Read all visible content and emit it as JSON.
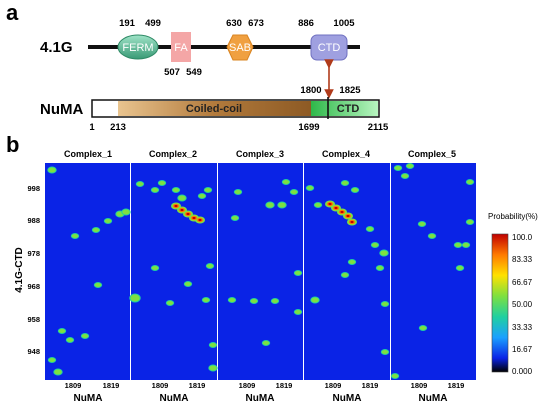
{
  "panel_a": {
    "letter": "a",
    "protein1": {
      "name": "4.1G",
      "domains": [
        {
          "label": "FERM",
          "start": "191",
          "end": "499",
          "color": "#5fbf9a"
        },
        {
          "label": "FA",
          "start": "507",
          "end": "549",
          "color": "#f4a3a3"
        },
        {
          "label": "SAB",
          "start": "630",
          "end": "673",
          "color": "#f0a040"
        },
        {
          "label": "CTD",
          "start": "886",
          "end": "1005",
          "color": "#9999dd"
        }
      ]
    },
    "protein2": {
      "name": "NuMA",
      "start": "1",
      "end": "2115",
      "coil": {
        "label": "Coiled-coil",
        "start": "213",
        "end": "1699",
        "color": "#b07a3a"
      },
      "ctd": {
        "label": "CTD",
        "start": "1699",
        "end": "2115",
        "color": "#3fcf5a"
      },
      "binding": {
        "start": "1800",
        "end": "1825"
      }
    }
  },
  "panel_b": {
    "letter": "b",
    "ylabel": "4.1G-CTD",
    "xlabel": "NuMA",
    "yticks": [
      "998",
      "988",
      "978",
      "968",
      "958",
      "948"
    ],
    "xticks": [
      "1809",
      "1819"
    ],
    "complexes": [
      "Complex_1",
      "Complex_2",
      "Complex_3",
      "Complex_4",
      "Complex_5"
    ],
    "colorbar": {
      "title": "Probability(%)",
      "ticks": [
        "100.0",
        "83.33",
        "66.67",
        "50.00",
        "33.33",
        "16.67",
        "0.000"
      ]
    }
  },
  "colors": {
    "background_map": "#0a23e6",
    "arrow": "#b03a1a"
  }
}
